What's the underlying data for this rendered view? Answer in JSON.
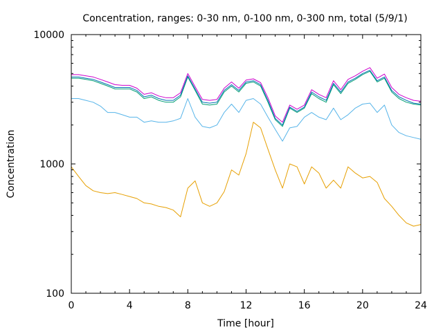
{
  "chart_data": {
    "type": "line",
    "title": "Concentration, ranges: 0-30 nm, 0-100 nm, 0-300 nm, total (5/9/1)",
    "xlabel": "Time [hour]",
    "ylabel": "Concentration",
    "xlim": [
      0,
      24
    ],
    "ylim": [
      100,
      10000
    ],
    "yscale": "log",
    "grid": false,
    "x_ticks": [
      "0",
      "4",
      "8",
      "12",
      "16",
      "20",
      "24"
    ],
    "y_ticks": [
      "100",
      "1000",
      "10000"
    ],
    "x": [
      0,
      0.5,
      1,
      1.5,
      2,
      2.5,
      3,
      3.5,
      4,
      4.5,
      5,
      5.5,
      6,
      6.5,
      7,
      7.5,
      8,
      8.5,
      9,
      9.5,
      10,
      10.5,
      11,
      11.5,
      12,
      12.5,
      13,
      13.5,
      14,
      14.5,
      15,
      15.5,
      16,
      16.5,
      17,
      17.5,
      18,
      18.5,
      19,
      19.5,
      20,
      20.5,
      21,
      21.5,
      22,
      22.5,
      23,
      23.5,
      24
    ],
    "series": [
      {
        "color": "#e69f00",
        "values": [
          950,
          800,
          680,
          620,
          600,
          590,
          600,
          580,
          560,
          540,
          500,
          490,
          470,
          460,
          440,
          390,
          650,
          740,
          500,
          470,
          500,
          610,
          900,
          820,
          1200,
          2100,
          1900,
          1300,
          900,
          650,
          1000,
          950,
          700,
          950,
          850,
          650,
          750,
          650,
          950,
          850,
          780,
          800,
          720,
          540,
          470,
          400,
          350,
          330,
          340
        ]
      },
      {
        "color": "#56b4e9",
        "values": [
          3200,
          3200,
          3100,
          3000,
          2800,
          2500,
          2500,
          2400,
          2300,
          2300,
          2100,
          2150,
          2100,
          2100,
          2150,
          2250,
          3200,
          2300,
          1950,
          1900,
          2000,
          2500,
          2900,
          2500,
          3100,
          3200,
          2900,
          2300,
          1850,
          1500,
          1900,
          1950,
          2300,
          2500,
          2300,
          2200,
          2700,
          2200,
          2400,
          2700,
          2900,
          2950,
          2500,
          2850,
          2000,
          1750,
          1650,
          1600,
          1550
        ]
      },
      {
        "color": "#009e73",
        "values": [
          4600,
          4600,
          4500,
          4400,
          4200,
          4000,
          3800,
          3800,
          3800,
          3600,
          3200,
          3300,
          3100,
          3000,
          3000,
          3300,
          4700,
          3700,
          2900,
          2850,
          2900,
          3600,
          4000,
          3600,
          4200,
          4300,
          4000,
          3000,
          2200,
          1950,
          2700,
          2500,
          2700,
          3500,
          3200,
          3000,
          4100,
          3500,
          4200,
          4500,
          4900,
          5200,
          4300,
          4600,
          3600,
          3200,
          3000,
          2900,
          2850
        ]
      },
      {
        "color": "#0072b2",
        "values": [
          4700,
          4700,
          4600,
          4500,
          4300,
          4100,
          3900,
          3900,
          3900,
          3700,
          3300,
          3400,
          3200,
          3100,
          3100,
          3400,
          4800,
          3800,
          3000,
          2950,
          3000,
          3700,
          4100,
          3700,
          4300,
          4400,
          4100,
          3100,
          2250,
          2000,
          2750,
          2550,
          2750,
          3600,
          3300,
          3100,
          4200,
          3600,
          4300,
          4600,
          5000,
          5300,
          4400,
          4700,
          3700,
          3300,
          3100,
          2950,
          2900
        ]
      },
      {
        "color": "#cc00cc",
        "values": [
          4900,
          4900,
          4800,
          4700,
          4500,
          4300,
          4100,
          4050,
          4050,
          3850,
          3450,
          3550,
          3350,
          3250,
          3250,
          3550,
          5000,
          3950,
          3150,
          3100,
          3150,
          3850,
          4300,
          3850,
          4450,
          4550,
          4250,
          3250,
          2350,
          2100,
          2850,
          2650,
          2850,
          3750,
          3450,
          3250,
          4400,
          3750,
          4500,
          4800,
          5200,
          5550,
          4600,
          4950,
          3900,
          3450,
          3250,
          3100,
          3050
        ]
      }
    ]
  }
}
